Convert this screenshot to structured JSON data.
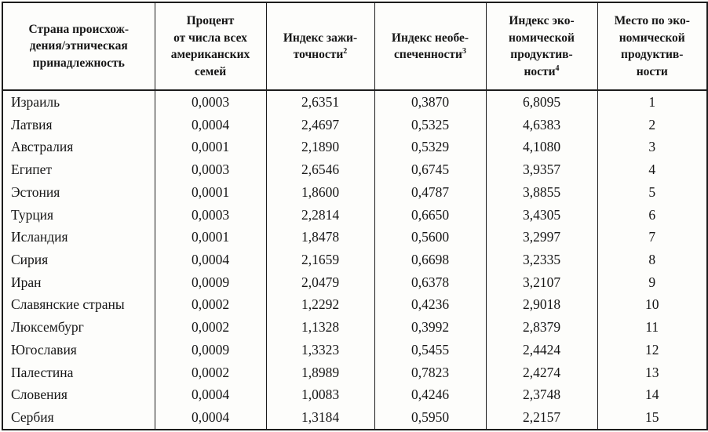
{
  "colors": {
    "border": "#1c1c1c",
    "text": "#161616",
    "background": "#fdfdfb"
  },
  "table": {
    "columns": [
      {
        "id": "country",
        "lines": [
          "Страна происхож-",
          "дения/этническая",
          "принадлежность"
        ],
        "sup": null
      },
      {
        "id": "percent",
        "lines": [
          "Процент",
          "от числа всех",
          "американских",
          "семей"
        ],
        "sup": null
      },
      {
        "id": "prosperity",
        "lines": [
          "Индекс зажи-",
          "точности"
        ],
        "sup": "2"
      },
      {
        "id": "insecurity",
        "lines": [
          "Индекс необе-",
          "спеченности"
        ],
        "sup": "3"
      },
      {
        "id": "productivity",
        "lines": [
          "Индекс эко-",
          "номической",
          "продуктив-",
          "ности"
        ],
        "sup": "4"
      },
      {
        "id": "rank",
        "lines": [
          "Место по эко-",
          "номической",
          "продуктив-",
          "ности"
        ],
        "sup": null
      }
    ],
    "rows": [
      [
        "Израиль",
        "0,0003",
        "2,6351",
        "0,3870",
        "6,8095",
        "1"
      ],
      [
        "Латвия",
        "0,0004",
        "2,4697",
        "0,5325",
        "4,6383",
        "2"
      ],
      [
        "Австралия",
        "0,0001",
        "2,1890",
        "0,5329",
        "4,1080",
        "3"
      ],
      [
        "Египет",
        "0,0003",
        "2,6546",
        "0,6745",
        "3,9357",
        "4"
      ],
      [
        "Эстония",
        "0,0001",
        "1,8600",
        "0,4787",
        "3,8855",
        "5"
      ],
      [
        "Турция",
        "0,0003",
        "2,2814",
        "0,6650",
        "3,4305",
        "6"
      ],
      [
        "Исландия",
        "0,0001",
        "1,8478",
        "0,5600",
        "3,2997",
        "7"
      ],
      [
        "Сирия",
        "0,0004",
        "2,1659",
        "0,6698",
        "3,2335",
        "8"
      ],
      [
        "Иран",
        "0,0009",
        "2,0479",
        "0,6378",
        "3,2107",
        "9"
      ],
      [
        "Славянские страны",
        "0,0002",
        "1,2292",
        "0,4236",
        "2,9018",
        "10"
      ],
      [
        "Люксембург",
        "0,0002",
        "1,1328",
        "0,3992",
        "2,8379",
        "11"
      ],
      [
        "Югославия",
        "0,0009",
        "1,3323",
        "0,5455",
        "2,4424",
        "12"
      ],
      [
        "Палестина",
        "0,0002",
        "1,8989",
        "0,7823",
        "2,4274",
        "13"
      ],
      [
        "Словения",
        "0,0004",
        "1,0083",
        "0,4246",
        "2,3748",
        "14"
      ],
      [
        "Сербия",
        "0,0004",
        "1,3184",
        "0,5950",
        "2,2157",
        "15"
      ]
    ]
  }
}
